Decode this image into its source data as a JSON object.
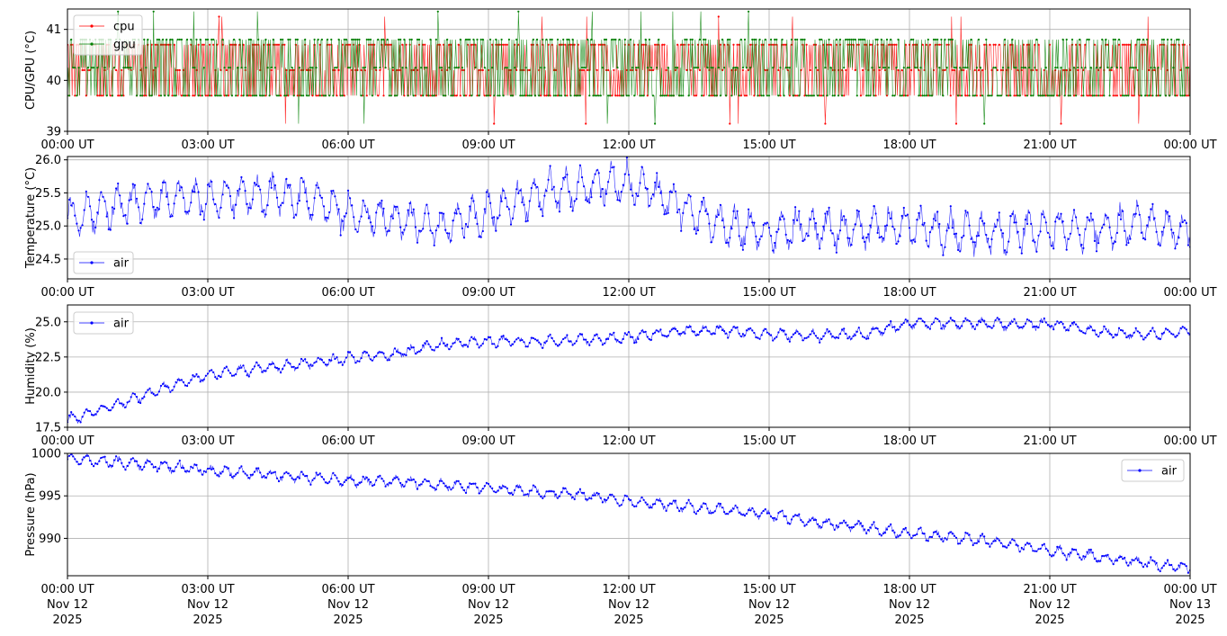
{
  "x_ticks": [
    "00:00 UT",
    "03:00 UT",
    "06:00 UT",
    "09:00 UT",
    "12:00 UT",
    "15:00 UT",
    "18:00 UT",
    "21:00 UT",
    "00:00 UT"
  ],
  "x_date_lines": [
    "Nov 12",
    "Nov 12",
    "Nov 12",
    "Nov 12",
    "Nov 12",
    "Nov 12",
    "Nov 12",
    "Nov 12",
    "Nov 13"
  ],
  "x_year_line": "2025",
  "chart_data": [
    {
      "type": "line",
      "ylabel": "CPU/GPU (°C)",
      "x_range": [
        "2025-11-12T00:00Z",
        "2025-11-13T00:00Z"
      ],
      "ylim": [
        39,
        41.4
      ],
      "yticks": [
        39,
        40,
        41
      ],
      "ytick_labels": [
        "39",
        "40",
        "41"
      ],
      "grid": true,
      "legend_position": "upper left",
      "x_hours": [
        0,
        1,
        2,
        3,
        4,
        5,
        6,
        7,
        8,
        9,
        10,
        11,
        12,
        13,
        14,
        15,
        16,
        17,
        18,
        19,
        20,
        21,
        22,
        23,
        24
      ],
      "series": [
        {
          "name": "cpu",
          "color": "#ff0000",
          "range": [
            39.7,
            40.7
          ],
          "values": [
            40.2,
            40.2,
            40.2,
            40.2,
            40.2,
            40.2,
            40.2,
            40.2,
            40.2,
            40.2,
            40.2,
            40.2,
            40.2,
            40.2,
            40.2,
            40.2,
            40.2,
            40.2,
            40.2,
            40.2,
            40.2,
            40.2,
            40.2,
            40.2,
            40.2
          ]
        },
        {
          "name": "gpu",
          "color": "#008000",
          "range": [
            39.7,
            40.8
          ],
          "values": [
            40.2,
            40.2,
            40.2,
            40.2,
            40.2,
            40.2,
            40.2,
            40.2,
            40.2,
            40.2,
            40.2,
            40.2,
            40.2,
            40.2,
            40.2,
            40.2,
            40.2,
            40.2,
            40.2,
            40.2,
            40.2,
            40.2,
            40.2,
            40.2,
            40.2
          ]
        }
      ]
    },
    {
      "type": "line",
      "ylabel": "Temperature (°C)",
      "x_range": [
        "2025-11-12T00:00Z",
        "2025-11-13T00:00Z"
      ],
      "ylim": [
        24.2,
        26.05
      ],
      "yticks": [
        24.5,
        25.0,
        25.5,
        26.0
      ],
      "ytick_labels": [
        "24.5",
        "25.0",
        "25.5",
        "26.0"
      ],
      "grid": true,
      "legend_position": "lower left",
      "x_hours": [
        0,
        1,
        2,
        3,
        4,
        5,
        6,
        7,
        8,
        9,
        10,
        11,
        12,
        13,
        14,
        15,
        16,
        17,
        18,
        19,
        20,
        21,
        22,
        23,
        24
      ],
      "series": [
        {
          "name": "air",
          "color": "#0000ff",
          "amplitude": 0.3,
          "values": [
            25.1,
            25.3,
            25.4,
            25.4,
            25.45,
            25.45,
            25.2,
            25.1,
            24.95,
            25.2,
            25.45,
            25.6,
            25.65,
            25.35,
            25.0,
            24.9,
            24.95,
            24.95,
            25.0,
            24.9,
            24.9,
            24.95,
            24.95,
            25.05,
            24.9
          ]
        }
      ]
    },
    {
      "type": "line",
      "ylabel": "Humidity (%)",
      "x_range": [
        "2025-11-12T00:00Z",
        "2025-11-13T00:00Z"
      ],
      "ylim": [
        17.5,
        26.2
      ],
      "yticks": [
        17.5,
        20.0,
        22.5,
        25.0
      ],
      "ytick_labels": [
        "17.5",
        "20.0",
        "22.5",
        "25.0"
      ],
      "grid": true,
      "legend_position": "upper left",
      "x_hours": [
        0,
        1,
        2,
        3,
        4,
        5,
        6,
        7,
        8,
        9,
        10,
        11,
        12,
        13,
        14,
        15,
        16,
        17,
        18,
        19,
        20,
        21,
        22,
        23,
        24
      ],
      "series": [
        {
          "name": "air",
          "color": "#0000ff",
          "values": [
            18.0,
            19.0,
            20.2,
            21.2,
            21.7,
            22.0,
            22.4,
            22.7,
            23.4,
            23.6,
            23.6,
            23.7,
            23.9,
            24.3,
            24.4,
            24.1,
            24.0,
            24.1,
            24.9,
            24.9,
            24.8,
            24.9,
            24.3,
            24.1,
            24.3
          ]
        }
      ]
    },
    {
      "type": "line",
      "ylabel": "Pressure (hPa)",
      "x_range": [
        "2025-11-12T00:00Z",
        "2025-11-13T00:00Z"
      ],
      "ylim": [
        985.6,
        1000.0
      ],
      "yticks": [
        990,
        995,
        1000
      ],
      "ytick_labels": [
        "990",
        "995",
        "1000"
      ],
      "grid": true,
      "legend_position": "upper right",
      "x_hours": [
        0,
        1,
        2,
        3,
        4,
        5,
        6,
        7,
        8,
        9,
        10,
        11,
        12,
        13,
        14,
        15,
        16,
        17,
        18,
        19,
        20,
        21,
        22,
        23,
        24
      ],
      "series": [
        {
          "name": "air",
          "color": "#0000ff",
          "values": [
            999.4,
            999.0,
            998.5,
            998.0,
            997.6,
            997.2,
            996.8,
            996.7,
            996.3,
            995.9,
            995.5,
            995.1,
            994.4,
            993.8,
            993.4,
            992.8,
            991.9,
            991.3,
            990.6,
            990.1,
            989.4,
            988.6,
            987.8,
            987.2,
            986.4
          ]
        }
      ]
    }
  ]
}
